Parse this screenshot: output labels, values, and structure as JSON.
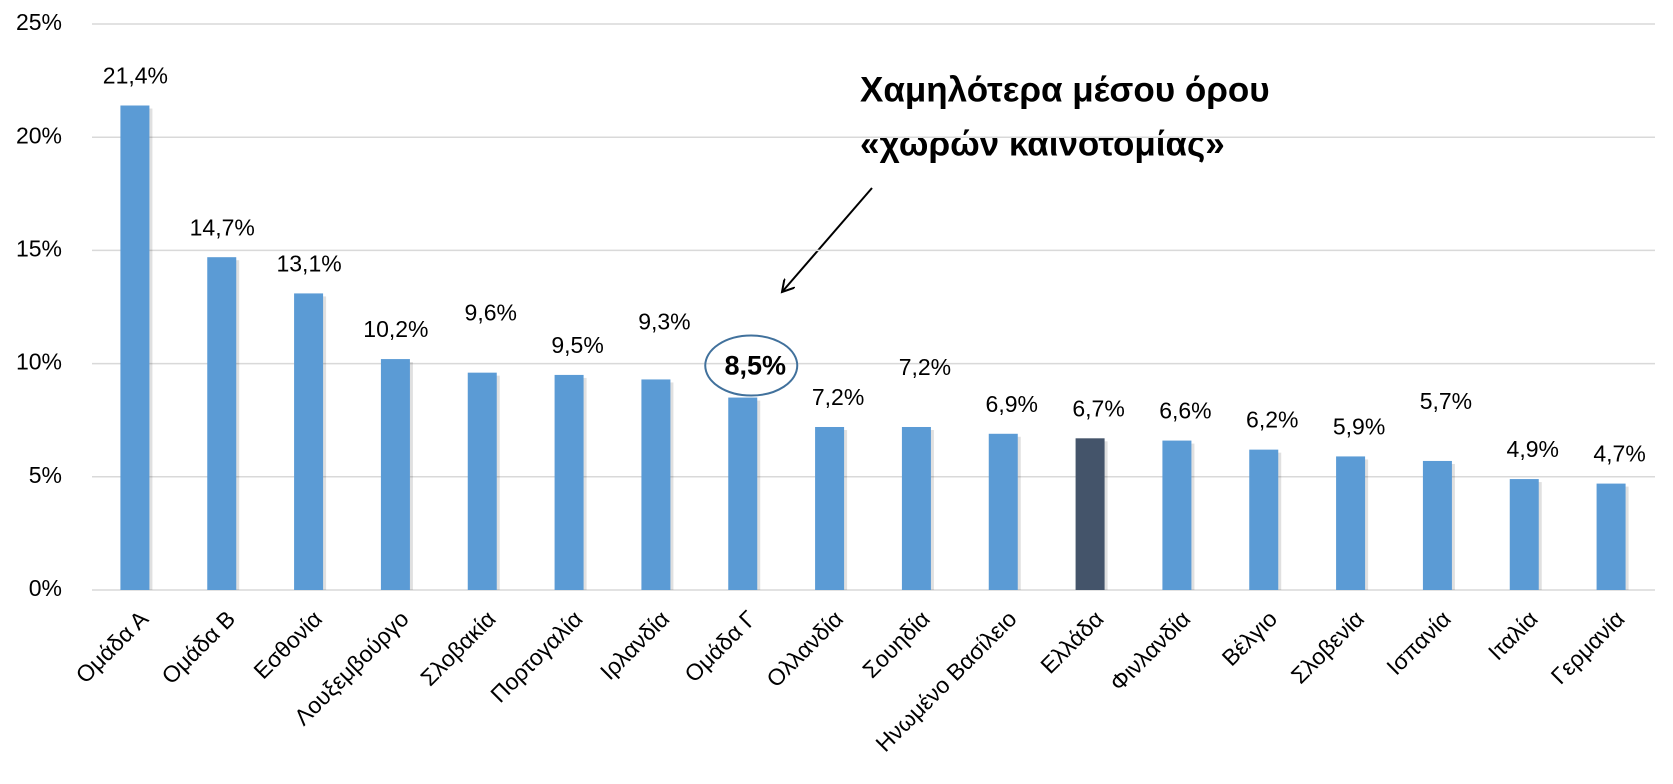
{
  "chart_data": {
    "type": "bar",
    "annotation": [
      "Χαμηλότερα μέσου όρου",
      "«χωρών καινοτομίας»"
    ],
    "categories": [
      "Ομάδα Α",
      "Ομάδα Β",
      "Εσθονία",
      "Λουξεμβούργο",
      "Σλοβακία",
      "Πορτογαλία",
      "Ιρλανδία",
      "Ομάδα Γ",
      "Ολλανδία",
      "Σουηδία",
      "Ηνωμένο Βασίλειο",
      "Ελλάδα",
      "Φινλανδία",
      "Βέλγιο",
      "Σλοβενία",
      "Ισπανία",
      "Ιταλία",
      "Γερμανία"
    ],
    "values": [
      21.4,
      14.7,
      13.1,
      10.2,
      9.6,
      9.5,
      9.3,
      8.5,
      7.2,
      7.2,
      6.9,
      6.7,
      6.6,
      6.2,
      5.9,
      5.7,
      4.9,
      4.7
    ],
    "value_labels": [
      "21,4%",
      "14,7%",
      "13,1%",
      "10,2%",
      "9,6%",
      "9,5%",
      "9,3%",
      "8,5%",
      "7,2%",
      "7,2%",
      "6,9%",
      "6,7%",
      "6,6%",
      "6,2%",
      "5,9%",
      "5,7%",
      "4,9%",
      "4,7%"
    ],
    "colors": [
      "#5b9bd5",
      "#5b9bd5",
      "#5b9bd5",
      "#5b9bd5",
      "#5b9bd5",
      "#5b9bd5",
      "#5b9bd5",
      "#5b9bd5",
      "#5b9bd5",
      "#5b9bd5",
      "#5b9bd5",
      "#44546a",
      "#5b9bd5",
      "#5b9bd5",
      "#5b9bd5",
      "#5b9bd5",
      "#5b9bd5",
      "#5b9bd5"
    ],
    "ylim": [
      0,
      25
    ],
    "yticks": [
      {
        "value": 0,
        "label": "0%"
      },
      {
        "value": 5,
        "label": "5%"
      },
      {
        "value": 10,
        "label": "10%"
      },
      {
        "value": 15,
        "label": "15%"
      },
      {
        "value": 20,
        "label": "20%"
      },
      {
        "value": 25,
        "label": "25%"
      }
    ],
    "grid": true
  }
}
